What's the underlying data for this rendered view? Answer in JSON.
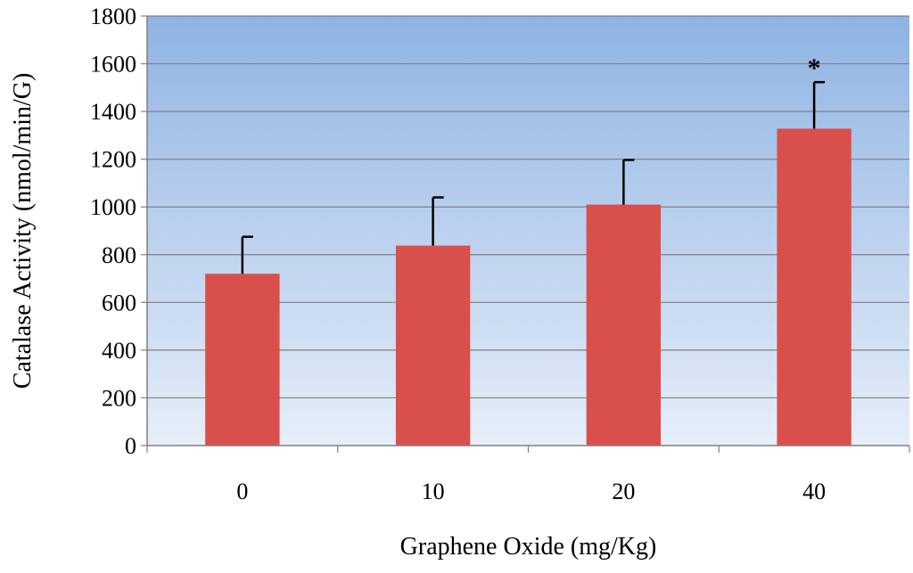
{
  "chart_data": {
    "type": "bar",
    "title": "",
    "xlabel": "Graphene Oxide (mg/Kg)",
    "ylabel": "Catalase Activity (nmol/min/G)",
    "categories": [
      "0",
      "10",
      "20",
      "40"
    ],
    "values": [
      720,
      838,
      1010,
      1328
    ],
    "error_bars": [
      155,
      202,
      187,
      195
    ],
    "significance": [
      "",
      "",
      "",
      "*"
    ],
    "ylim": [
      0,
      1800
    ],
    "yticks": [
      "0",
      "200",
      "400",
      "600",
      "800",
      "1000",
      "1200",
      "1400",
      "1600",
      "1800"
    ],
    "grid": true,
    "legend": "none",
    "colors": {
      "bar": "#d94f4b",
      "plot_bg_top": "#8fb3e3",
      "plot_bg_bottom": "#e6eef9",
      "grid": "#808080",
      "axis": "#808080",
      "error_bar": "#000000"
    }
  }
}
